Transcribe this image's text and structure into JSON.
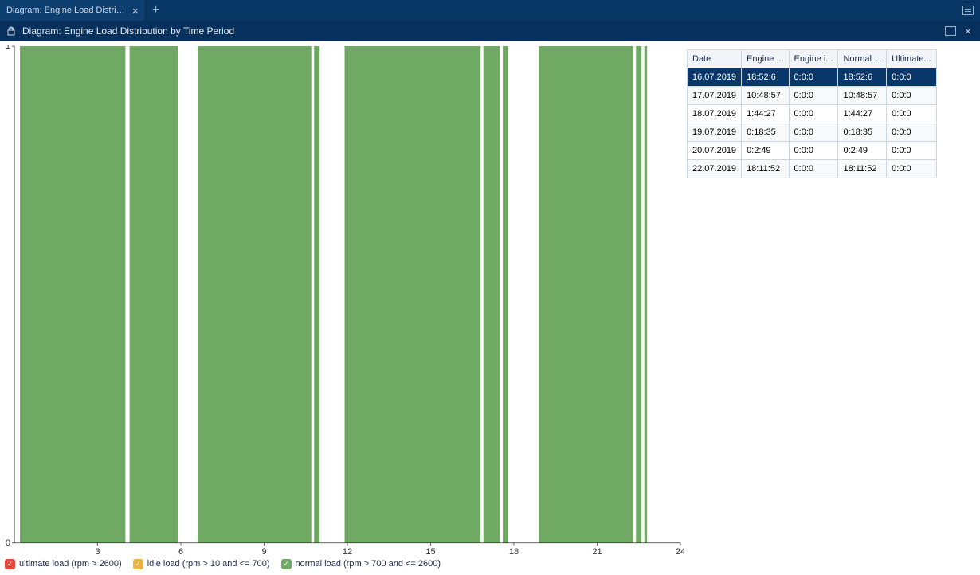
{
  "tab": {
    "label": "Diagram: Engine Load Distribution b..."
  },
  "header": {
    "title": "Diagram: Engine Load Distribution by Time Period"
  },
  "chart": {
    "type": "bar",
    "background_color": "#ffffff",
    "axis_color": "#333333",
    "tick_color": "#333333",
    "label_fontsize": 11,
    "xlim": [
      0,
      24
    ],
    "ylim": [
      0,
      1
    ],
    "yticks": [
      0,
      1
    ],
    "xticks": [
      3,
      6,
      9,
      12,
      15,
      18,
      21,
      24
    ],
    "bars": [
      {
        "start": 0.2,
        "end": 4.0,
        "value": 1,
        "color": "#6fa964"
      },
      {
        "start": 4.15,
        "end": 5.9,
        "value": 1,
        "color": "#6fa964"
      },
      {
        "start": 6.6,
        "end": 10.7,
        "value": 1,
        "color": "#6fa964"
      },
      {
        "start": 10.8,
        "end": 11.0,
        "value": 1,
        "color": "#6fa964"
      },
      {
        "start": 11.9,
        "end": 16.8,
        "value": 1,
        "color": "#6fa964"
      },
      {
        "start": 16.9,
        "end": 17.5,
        "value": 1,
        "color": "#6fa964"
      },
      {
        "start": 17.6,
        "end": 17.8,
        "value": 1,
        "color": "#6fa964"
      },
      {
        "start": 18.9,
        "end": 22.3,
        "value": 1,
        "color": "#6fa964"
      },
      {
        "start": 22.4,
        "end": 22.6,
        "value": 1,
        "color": "#6fa964"
      },
      {
        "start": 22.7,
        "end": 22.8,
        "value": 1,
        "color": "#6fa964"
      }
    ]
  },
  "legend": {
    "items": [
      {
        "label": "ultimate load (rpm > 2600)",
        "color": "#e24a3b"
      },
      {
        "label": "idle load (rpm > 10 and <= 700)",
        "color": "#f0b23e"
      },
      {
        "label": "normal load (rpm > 700 and <= 2600)",
        "color": "#6fa964"
      }
    ]
  },
  "table": {
    "columns": [
      "Date",
      "Engine ...",
      "Engine i...",
      "Normal ...",
      "Ultimate..."
    ],
    "selected_row": 0,
    "rows": [
      [
        "16.07.2019",
        "18:52:6",
        "0:0:0",
        "18:52:6",
        "0:0:0"
      ],
      [
        "17.07.2019",
        "10:48:57",
        "0:0:0",
        "10:48:57",
        "0:0:0"
      ],
      [
        "18.07.2019",
        "1:44:27",
        "0:0:0",
        "1:44:27",
        "0:0:0"
      ],
      [
        "19.07.2019",
        "0:18:35",
        "0:0:0",
        "0:18:35",
        "0:0:0"
      ],
      [
        "20.07.2019",
        "0:2:49",
        "0:0:0",
        "0:2:49",
        "0:0:0"
      ],
      [
        "22.07.2019",
        "18:11:52",
        "0:0:0",
        "18:11:52",
        "0:0:0"
      ]
    ]
  }
}
